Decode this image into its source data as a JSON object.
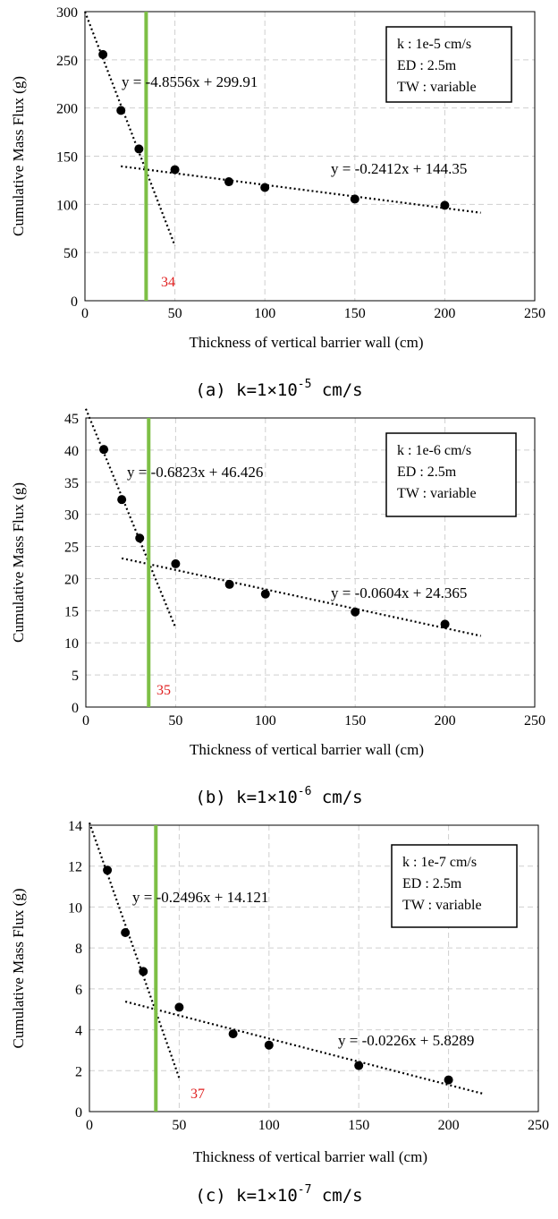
{
  "colors": {
    "marker": "#000000",
    "trend": "#000000",
    "wall_line": "#7dbf45",
    "wall_label": "#e02020",
    "grid": "#cfcfcf"
  },
  "chart_data": [
    {
      "type": "scatter",
      "caption": {
        "prefix": "(a) k=1×10",
        "exp": "-5",
        "suffix": " cm/s"
      },
      "xlabel": "Thickness of vertical barrier wall (cm)",
      "ylabel": "Cumulative Mass Flux (g)",
      "xlim": [
        0,
        250
      ],
      "ylim": [
        0,
        300
      ],
      "xticks": [
        "0",
        "50",
        "100",
        "150",
        "200",
        "250"
      ],
      "yticks": [
        "0",
        "50",
        "100",
        "150",
        "200",
        "250",
        "300"
      ],
      "grid": true,
      "legend_box": {
        "position": "top-right",
        "lines": [
          "k : 1e-5 cm/s",
          "ED : 2.5m",
          "TW : variable"
        ]
      },
      "points": {
        "x": [
          10,
          20,
          30,
          50,
          80,
          100,
          150,
          200
        ],
        "y": [
          255.5,
          197.5,
          157.5,
          136,
          123.5,
          117.5,
          105.5,
          99
        ]
      },
      "trendlines": [
        {
          "equation": "y = -4.8556x + 299.91",
          "slope": -4.8556,
          "intercept": 299.91,
          "x_range": [
            0,
            50
          ]
        },
        {
          "equation": "y = -0.2412x + 144.35",
          "slope": -0.2412,
          "intercept": 144.35,
          "x_range": [
            20,
            220
          ]
        }
      ],
      "critical_thickness": {
        "x": 34,
        "label": "34"
      }
    },
    {
      "type": "scatter",
      "caption": {
        "prefix": "(b) k=1×10",
        "exp": "-6",
        "suffix": " cm/s"
      },
      "xlabel": "Thickness of vertical barrier wall (cm)",
      "ylabel": "Cumulative Mass Flux (g)",
      "xlim": [
        0,
        250
      ],
      "ylim": [
        0,
        45
      ],
      "xticks": [
        "0",
        "50",
        "100",
        "150",
        "200",
        "250"
      ],
      "yticks": [
        "0",
        "5",
        "10",
        "15",
        "20",
        "25",
        "30",
        "35",
        "40",
        "45"
      ],
      "grid": true,
      "legend_box": {
        "position": "top-right",
        "lines": [
          "k : 1e-6 cm/s",
          "ED : 2.5m",
          "TW : variable"
        ]
      },
      "points": {
        "x": [
          10,
          20,
          30,
          50,
          80,
          100,
          150,
          200
        ],
        "y": [
          40.1,
          32.3,
          26.3,
          22.3,
          19.1,
          17.6,
          14.8,
          12.9
        ]
      },
      "trendlines": [
        {
          "equation": "y = -0.6823x + 46.426",
          "slope": -0.6823,
          "intercept": 46.426,
          "x_range": [
            0,
            50
          ]
        },
        {
          "equation": "y = -0.0604x + 24.365",
          "slope": -0.0604,
          "intercept": 24.365,
          "x_range": [
            20,
            220
          ]
        }
      ],
      "critical_thickness": {
        "x": 35,
        "label": "35"
      }
    },
    {
      "type": "scatter",
      "caption": {
        "prefix": "(c) k=1×10",
        "exp": "-7",
        "suffix": " cm/s"
      },
      "xlabel": "Thickness of vertical barrier wall (cm)",
      "ylabel": "Cumulative Mass Flux (g)",
      "xlim": [
        0,
        250
      ],
      "ylim": [
        0,
        14
      ],
      "xticks": [
        "0",
        "50",
        "100",
        "150",
        "200",
        "250"
      ],
      "yticks": [
        "0",
        "2",
        "4",
        "6",
        "8",
        "10",
        "12",
        "14"
      ],
      "grid": true,
      "legend_box": {
        "position": "top-right",
        "lines": [
          "k : 1e-7 cm/s",
          "ED : 2.5m",
          "TW : variable"
        ]
      },
      "points": {
        "x": [
          10,
          20,
          30,
          50,
          80,
          100,
          150,
          200
        ],
        "y": [
          11.8,
          8.75,
          6.85,
          5.1,
          3.8,
          3.25,
          2.25,
          1.55
        ]
      },
      "trendlines": [
        {
          "equation": "y = -0.2496x + 14.121",
          "slope": -0.2496,
          "intercept": 14.121,
          "x_range": [
            0,
            50
          ]
        },
        {
          "equation": "y = -0.0226x + 5.8289",
          "slope": -0.0226,
          "intercept": 5.8289,
          "x_range": [
            20,
            220
          ]
        }
      ],
      "critical_thickness": {
        "x": 37,
        "label": "37"
      }
    }
  ]
}
